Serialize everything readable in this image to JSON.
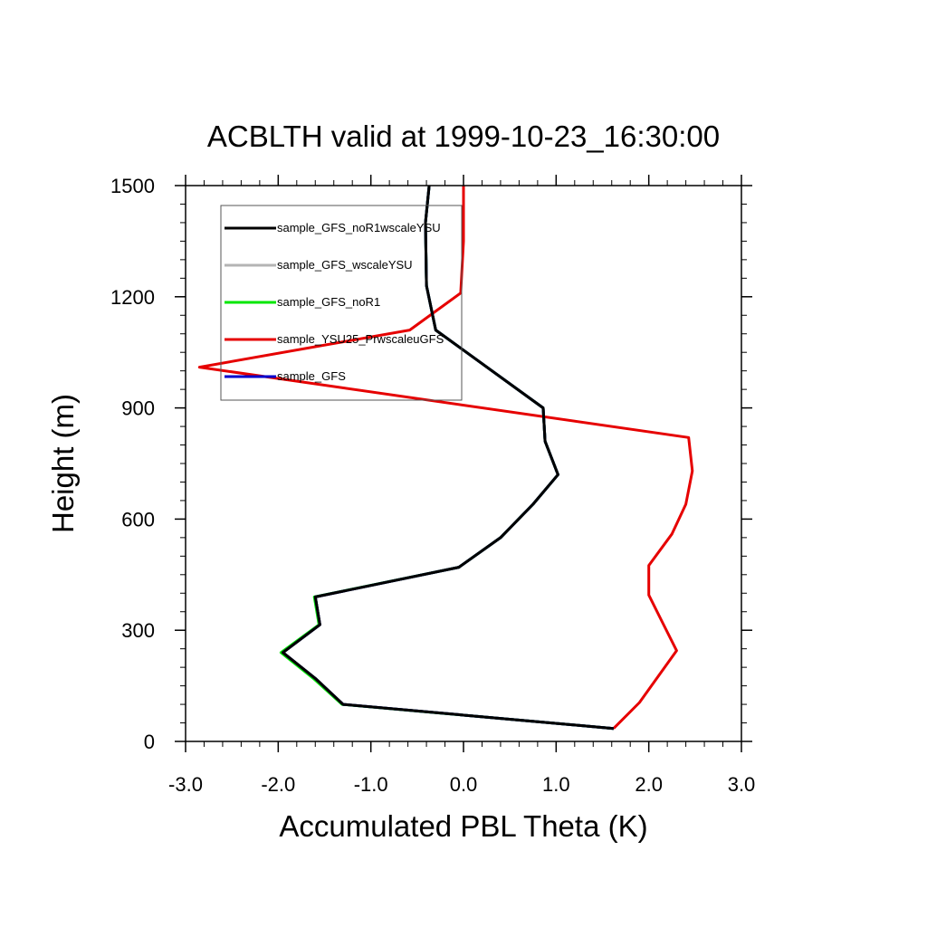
{
  "chart_data": {
    "type": "line",
    "title": "ACBLTH valid at 1999-10-23_16:30:00",
    "xlabel": "Accumulated PBL Theta (K)",
    "ylabel": "Height (m)",
    "xlim": [
      -3.0,
      3.0
    ],
    "ylim": [
      0,
      1500
    ],
    "xticks": [
      -3.0,
      -2.0,
      -1.0,
      0.0,
      1.0,
      2.0,
      3.0
    ],
    "xtick_labels": [
      "-3.0",
      "-2.0",
      "-1.0",
      "0.0",
      "1.0",
      "2.0",
      "3.0"
    ],
    "yticks": [
      0,
      300,
      600,
      900,
      1200,
      1500
    ],
    "ytick_labels": [
      "0",
      "300",
      "600",
      "900",
      "1200",
      "1500"
    ],
    "legend_position": "top-left",
    "grid": false,
    "series": [
      {
        "name": "sample_GFS_noR1wscaleYSU",
        "color": "#000000",
        "x": [
          1.62,
          -1.3,
          -1.6,
          -1.95,
          -1.55,
          -1.6,
          -0.05,
          0.4,
          0.75,
          1.02,
          0.88,
          0.86,
          -0.3,
          -0.4,
          -0.41,
          -0.37
        ],
        "y": [
          35,
          100,
          170,
          240,
          315,
          390,
          470,
          550,
          640,
          720,
          810,
          900,
          1110,
          1230,
          1400,
          1500
        ]
      },
      {
        "name": "sample_GFS_wscaleYSU",
        "color": "#b4b4b4",
        "x": [
          1.62,
          -1.3,
          -1.6,
          -1.95,
          -1.55,
          -1.6,
          -0.05,
          0.4,
          0.75,
          1.02,
          0.88,
          0.86,
          -0.3,
          -0.4,
          -0.41,
          -0.37
        ],
        "y": [
          35,
          100,
          170,
          240,
          315,
          390,
          470,
          550,
          640,
          720,
          810,
          900,
          1110,
          1230,
          1400,
          1500
        ]
      },
      {
        "name": "sample_GFS_noR1",
        "color": "#00e600",
        "x": [
          1.62,
          -1.31,
          -1.62,
          -1.97,
          -1.56,
          -1.61,
          -0.05,
          0.4,
          0.75,
          1.02,
          0.88,
          0.86,
          -0.3,
          -0.4,
          -0.41,
          -0.37
        ],
        "y": [
          35,
          100,
          170,
          240,
          315,
          390,
          470,
          550,
          640,
          720,
          810,
          900,
          1110,
          1230,
          1400,
          1500
        ]
      },
      {
        "name": "sample_YSU25_PrwscaleuGFS",
        "color": "#e60000",
        "x": [
          1.62,
          1.9,
          2.3,
          2.15,
          2.0,
          2.0,
          2.25,
          2.4,
          2.47,
          2.43,
          -2.85,
          -0.58,
          -0.03,
          0.0,
          0.0
        ],
        "y": [
          35,
          105,
          245,
          320,
          395,
          475,
          560,
          640,
          730,
          820,
          1010,
          1110,
          1210,
          1350,
          1500
        ]
      },
      {
        "name": "sample_GFS",
        "color": "#0000cc",
        "x": [
          1.62,
          -1.3,
          -1.6,
          -1.95,
          -1.55,
          -1.6,
          -0.05,
          0.4,
          0.75,
          1.02,
          0.88,
          0.86,
          -0.3,
          -0.4,
          -0.41,
          -0.37
        ],
        "y": [
          35,
          100,
          170,
          240,
          315,
          390,
          470,
          550,
          640,
          720,
          810,
          900,
          1110,
          1230,
          1400,
          1500
        ]
      }
    ]
  }
}
